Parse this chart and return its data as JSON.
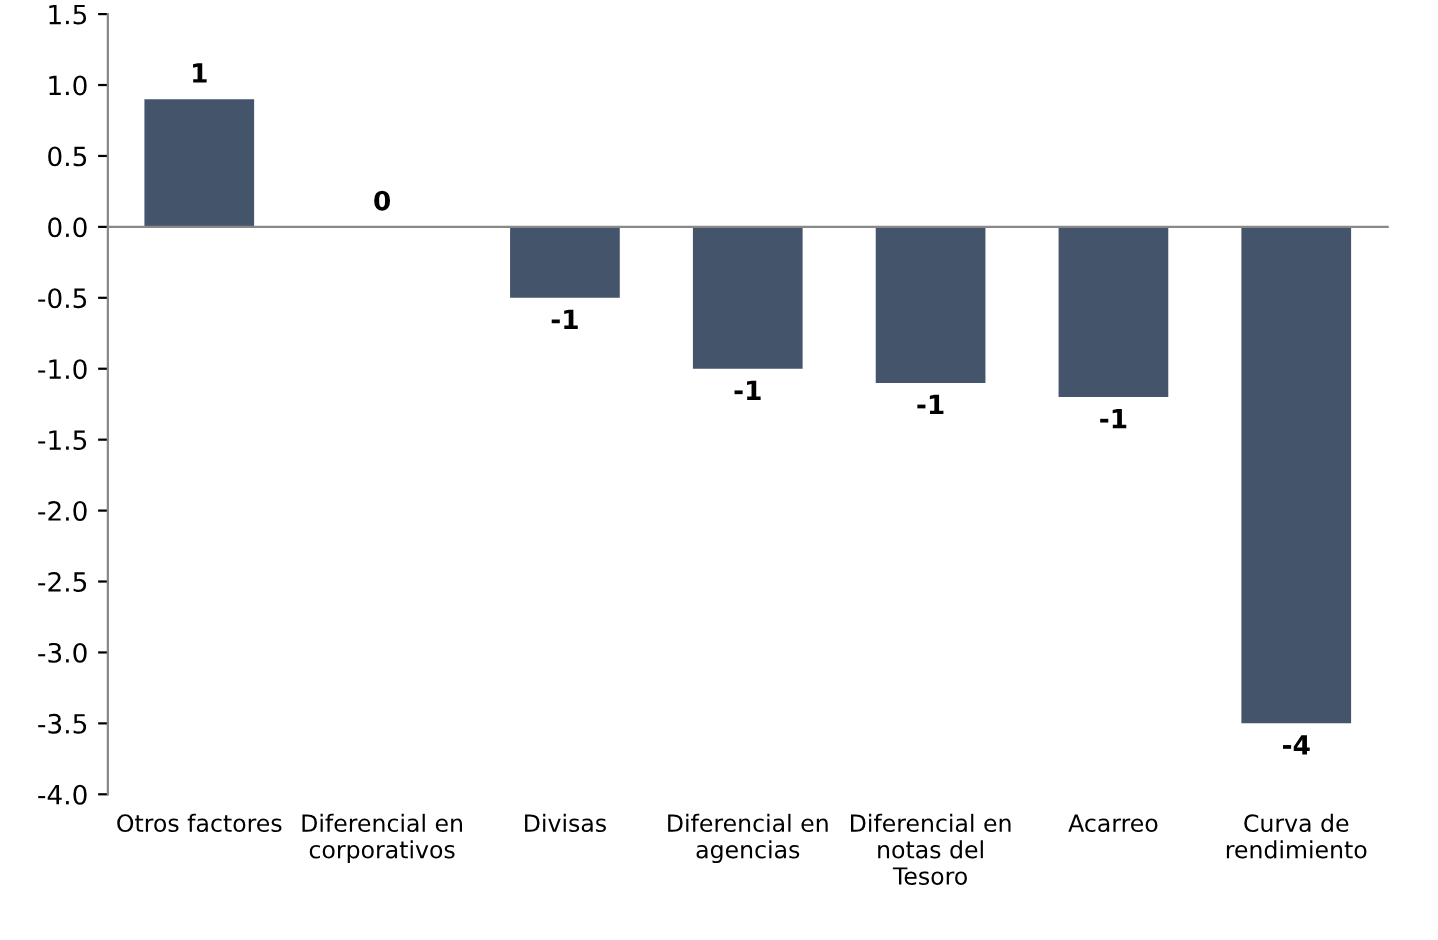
{
  "chart_data": {
    "type": "bar",
    "categories": [
      "Otros factores",
      "Diferencial en\ncorporativos",
      "Divisas",
      "Diferencial en\nagencias",
      "Diferencial en\nnotas del\nTesoro",
      "Acarreo",
      "Curva de\nrendimiento"
    ],
    "values": [
      0.9,
      0,
      -0.5,
      -1.0,
      -1.1,
      -1.2,
      -3.5
    ],
    "value_labels": [
      "1",
      "0",
      "-1",
      "-1",
      "-1",
      "-1",
      "-4"
    ],
    "color": "#44546a",
    "ylim": [
      -4.0,
      1.5
    ],
    "yticks": [
      {
        "value": -4.0,
        "label": "-4.0"
      },
      {
        "value": -3.5,
        "label": "-3.5"
      },
      {
        "value": -3.0,
        "label": "-3.0"
      },
      {
        "value": -2.5,
        "label": "-2.5"
      },
      {
        "value": -2.0,
        "label": "-2.0"
      },
      {
        "value": -1.5,
        "label": "-1.5"
      },
      {
        "value": -1.0,
        "label": "-1.0"
      },
      {
        "value": -0.5,
        "label": "-0.5"
      },
      {
        "value": 0.0,
        "label": "0.0"
      },
      {
        "value": 0.5,
        "label": "0.5"
      },
      {
        "value": 1.0,
        "label": "1.0"
      },
      {
        "value": 1.5,
        "label": "1.5"
      }
    ]
  }
}
